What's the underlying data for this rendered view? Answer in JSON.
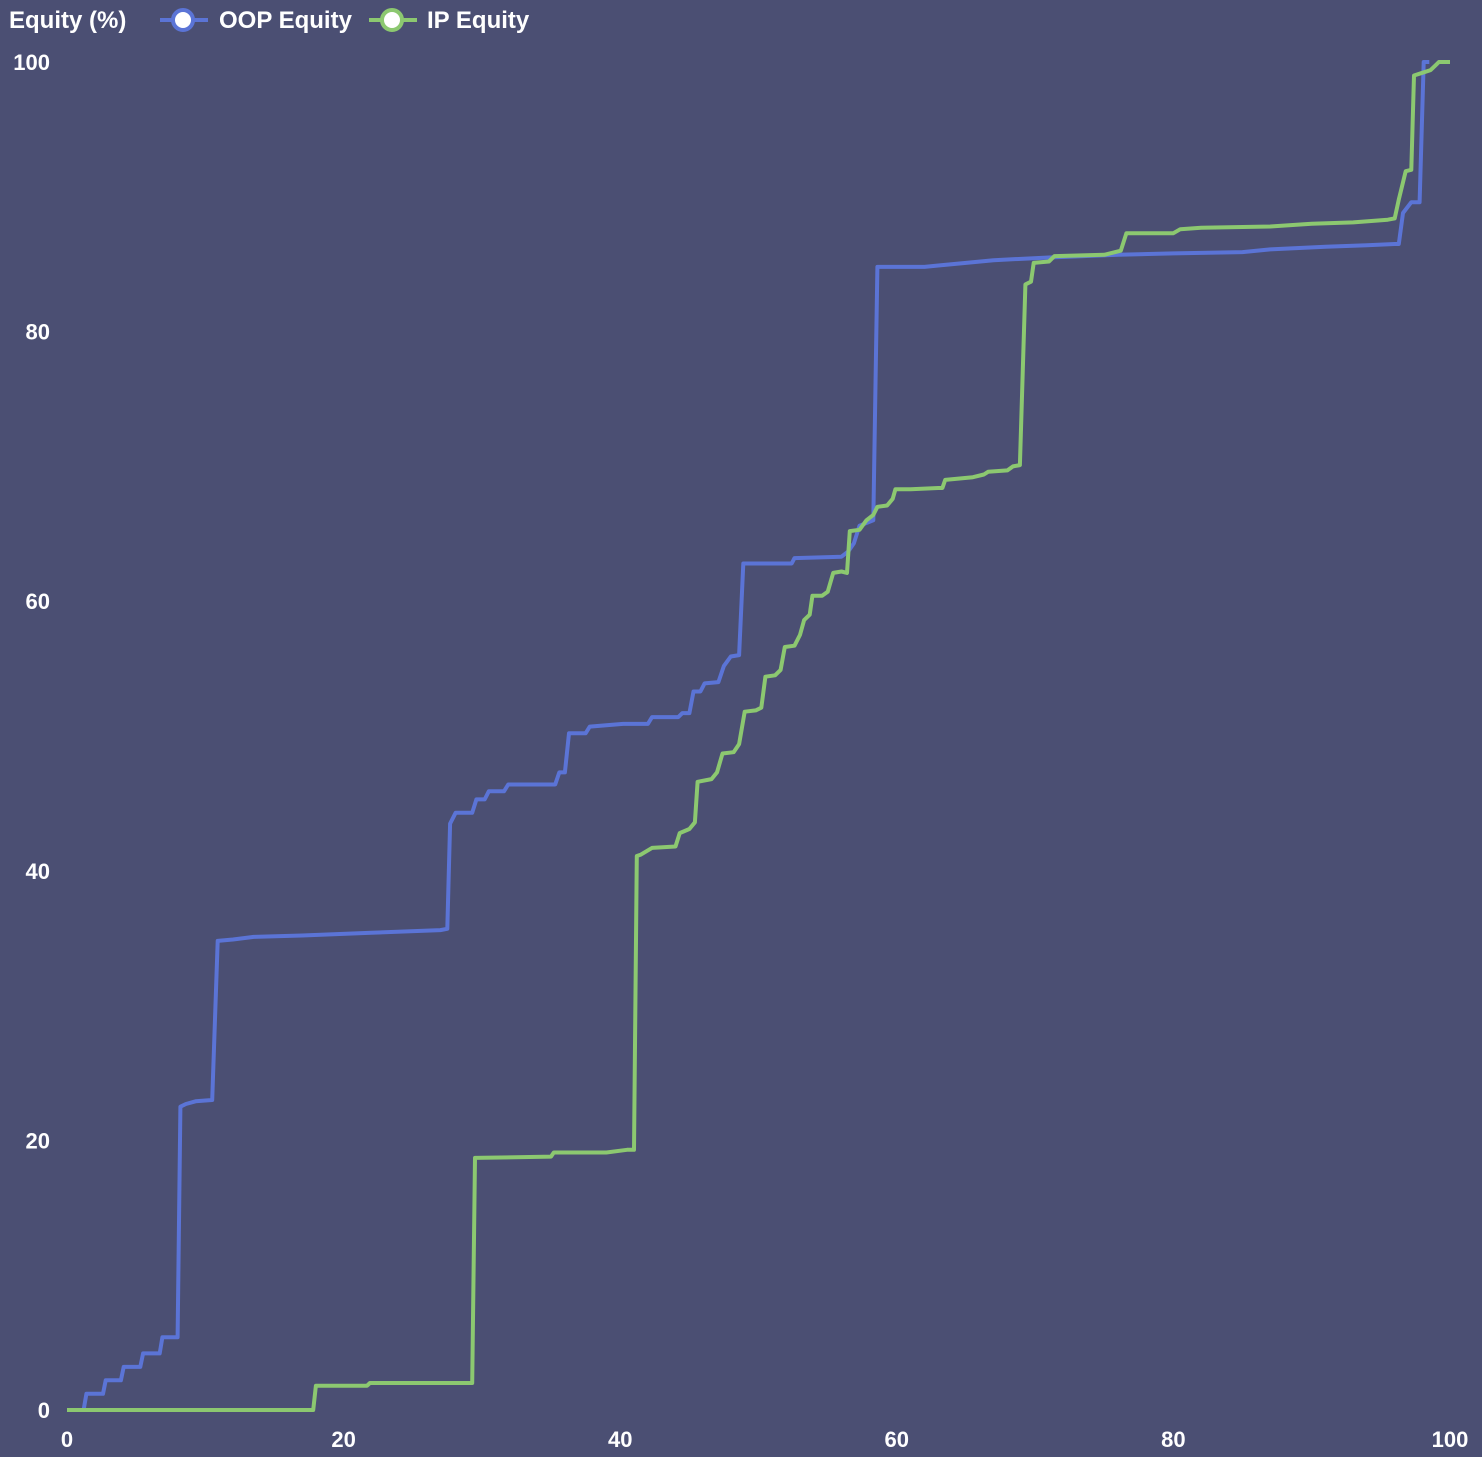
{
  "chart_data": {
    "type": "line",
    "title": "",
    "ylabel": "Equity (%)",
    "xlabel": "",
    "xlim": [
      0,
      100
    ],
    "ylim": [
      0,
      100
    ],
    "x_ticks": [
      "0",
      "20",
      "40",
      "60",
      "80",
      "100"
    ],
    "y_ticks": [
      "0",
      "20",
      "40",
      "60",
      "80",
      "100"
    ],
    "grid": false,
    "legend_position": "top-left",
    "background": "#4b4f73",
    "series": [
      {
        "name": "OOP Equity",
        "color": "#5b74d6",
        "points": [
          [
            0,
            0
          ],
          [
            1.2,
            0
          ],
          [
            1.4,
            1.2
          ],
          [
            2.6,
            1.2
          ],
          [
            2.8,
            2.2
          ],
          [
            3.9,
            2.2
          ],
          [
            4.1,
            3.2
          ],
          [
            5.3,
            3.2
          ],
          [
            5.5,
            4.2
          ],
          [
            6.7,
            4.2
          ],
          [
            6.9,
            5.4
          ],
          [
            8.0,
            5.4
          ],
          [
            8.2,
            22.5
          ],
          [
            8.6,
            22.7
          ],
          [
            9.3,
            22.9
          ],
          [
            10.5,
            23.0
          ],
          [
            10.9,
            34.8
          ],
          [
            12.0,
            34.9
          ],
          [
            13.5,
            35.1
          ],
          [
            17.0,
            35.2
          ],
          [
            22.0,
            35.4
          ],
          [
            27.0,
            35.6
          ],
          [
            27.5,
            35.7
          ],
          [
            27.7,
            43.5
          ],
          [
            28.1,
            44.3
          ],
          [
            29.3,
            44.3
          ],
          [
            29.6,
            45.3
          ],
          [
            30.2,
            45.3
          ],
          [
            30.5,
            45.9
          ],
          [
            31.6,
            45.9
          ],
          [
            31.9,
            46.4
          ],
          [
            35.3,
            46.4
          ],
          [
            35.6,
            47.3
          ],
          [
            36.0,
            47.3
          ],
          [
            36.3,
            50.2
          ],
          [
            37.5,
            50.2
          ],
          [
            37.8,
            50.7
          ],
          [
            39.0,
            50.8
          ],
          [
            40.2,
            50.9
          ],
          [
            42.0,
            50.9
          ],
          [
            42.3,
            51.4
          ],
          [
            44.2,
            51.4
          ],
          [
            44.5,
            51.7
          ],
          [
            45.0,
            51.7
          ],
          [
            45.3,
            53.3
          ],
          [
            45.8,
            53.3
          ],
          [
            46.1,
            53.9
          ],
          [
            47.1,
            54.0
          ],
          [
            47.5,
            55.2
          ],
          [
            48.0,
            55.9
          ],
          [
            48.6,
            56.0
          ],
          [
            48.9,
            62.8
          ],
          [
            52.4,
            62.8
          ],
          [
            52.6,
            63.2
          ],
          [
            56.0,
            63.3
          ],
          [
            56.5,
            63.7
          ],
          [
            56.9,
            64.3
          ],
          [
            57.3,
            65.6
          ],
          [
            58.3,
            66.0
          ],
          [
            58.6,
            84.8
          ],
          [
            62.0,
            84.8
          ],
          [
            63.0,
            84.9
          ],
          [
            65.0,
            85.1
          ],
          [
            67.0,
            85.3
          ],
          [
            71.0,
            85.5
          ],
          [
            76.0,
            85.7
          ],
          [
            80.0,
            85.8
          ],
          [
            85.0,
            85.9
          ],
          [
            87.0,
            86.1
          ],
          [
            91.0,
            86.3
          ],
          [
            94.0,
            86.4
          ],
          [
            96.0,
            86.5
          ],
          [
            96.3,
            86.5
          ],
          [
            96.6,
            88.8
          ],
          [
            97.2,
            89.6
          ],
          [
            97.8,
            89.6
          ],
          [
            98.1,
            100
          ],
          [
            98.5,
            100
          ]
        ]
      },
      {
        "name": "IP Equity",
        "color": "#8cc870",
        "points": [
          [
            0,
            0
          ],
          [
            17.8,
            0
          ],
          [
            18.0,
            1.8
          ],
          [
            21.7,
            1.8
          ],
          [
            21.9,
            2.0
          ],
          [
            29.3,
            2.0
          ],
          [
            29.5,
            18.7
          ],
          [
            35.0,
            18.8
          ],
          [
            35.2,
            19.1
          ],
          [
            39.0,
            19.1
          ],
          [
            40.5,
            19.3
          ],
          [
            41.0,
            19.3
          ],
          [
            41.2,
            41.1
          ],
          [
            41.5,
            41.2
          ],
          [
            42.3,
            41.7
          ],
          [
            44.0,
            41.8
          ],
          [
            44.3,
            42.8
          ],
          [
            45.0,
            43.1
          ],
          [
            45.4,
            43.6
          ],
          [
            45.6,
            46.6
          ],
          [
            46.6,
            46.8
          ],
          [
            47.0,
            47.3
          ],
          [
            47.4,
            48.7
          ],
          [
            48.2,
            48.8
          ],
          [
            48.6,
            49.4
          ],
          [
            49.0,
            51.8
          ],
          [
            49.8,
            51.9
          ],
          [
            50.2,
            52.1
          ],
          [
            50.5,
            54.4
          ],
          [
            51.2,
            54.5
          ],
          [
            51.6,
            54.9
          ],
          [
            51.9,
            56.6
          ],
          [
            52.6,
            56.7
          ],
          [
            53.0,
            57.5
          ],
          [
            53.3,
            58.6
          ],
          [
            53.7,
            59.0
          ],
          [
            53.9,
            60.4
          ],
          [
            54.6,
            60.4
          ],
          [
            55.0,
            60.7
          ],
          [
            55.4,
            62.1
          ],
          [
            56.0,
            62.2
          ],
          [
            56.4,
            62.1
          ],
          [
            56.6,
            65.2
          ],
          [
            57.3,
            65.3
          ],
          [
            57.8,
            66.0
          ],
          [
            58.3,
            66.4
          ],
          [
            58.6,
            67.0
          ],
          [
            59.3,
            67.1
          ],
          [
            59.7,
            67.6
          ],
          [
            59.9,
            68.3
          ],
          [
            61.0,
            68.3
          ],
          [
            63.0,
            68.4
          ],
          [
            63.3,
            68.4
          ],
          [
            63.5,
            69.0
          ],
          [
            65.5,
            69.2
          ],
          [
            66.3,
            69.4
          ],
          [
            66.6,
            69.6
          ],
          [
            68.0,
            69.7
          ],
          [
            68.4,
            70.0
          ],
          [
            68.9,
            70.1
          ],
          [
            69.3,
            83.5
          ],
          [
            69.7,
            83.7
          ],
          [
            69.9,
            85.1
          ],
          [
            71.0,
            85.2
          ],
          [
            71.4,
            85.6
          ],
          [
            75.0,
            85.7
          ],
          [
            76.2,
            86.0
          ],
          [
            76.6,
            87.3
          ],
          [
            80.0,
            87.3
          ],
          [
            80.5,
            87.6
          ],
          [
            82.0,
            87.7
          ],
          [
            87.0,
            87.8
          ],
          [
            90.0,
            88.0
          ],
          [
            93.0,
            88.1
          ],
          [
            95.5,
            88.3
          ],
          [
            96.0,
            88.4
          ],
          [
            96.3,
            89.8
          ],
          [
            96.8,
            91.9
          ],
          [
            97.2,
            92.0
          ],
          [
            97.4,
            99.0
          ],
          [
            98.0,
            99.2
          ],
          [
            98.6,
            99.4
          ],
          [
            99.0,
            99.8
          ],
          [
            99.2,
            100
          ],
          [
            100,
            100
          ]
        ]
      }
    ]
  }
}
